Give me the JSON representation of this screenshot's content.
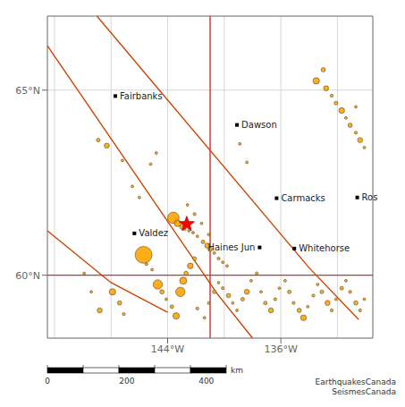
{
  "chart_data": {
    "type": "scatter",
    "xlim": [
      -152.5,
      -129.5
    ],
    "ylim": [
      58.3,
      67.0
    ],
    "xticks": [
      {
        "value": -144,
        "label": "144°W"
      },
      {
        "value": -136,
        "label": "136°W"
      }
    ],
    "yticks": [
      {
        "value": 60,
        "label": "60°N"
      },
      {
        "value": 65,
        "label": "65°N"
      }
    ],
    "grid": true,
    "grid_lines": {
      "x": [
        -152,
        -148,
        -144,
        -140,
        -136,
        -132
      ],
      "y": [
        60,
        65
      ]
    },
    "color": "#ffa500",
    "x": [
      -148.9,
      -148.3,
      -147.2,
      -146.5,
      -146.0,
      -145.2,
      -144.8,
      -143.6,
      -143.3,
      -143.0,
      -142.8,
      -142.5,
      -142.2,
      -141.9,
      -141.5,
      -141.2,
      -141.0,
      -140.7,
      -140.4,
      -140.1,
      -139.8,
      -142.6,
      -142.1,
      -141.6,
      -141.1,
      -145.7,
      -145.5,
      -145.1,
      -144.7,
      -144.4,
      -144.1,
      -143.7,
      -143.4,
      -143.1,
      -142.9,
      -142.7,
      -142.4,
      -142.1,
      -141.9,
      -141.4,
      -141.1,
      -140.7,
      -140.4,
      -140.1,
      -139.7,
      -139.4,
      -139.1,
      -138.7,
      -138.4,
      -138.1,
      -137.7,
      -137.4,
      -137.1,
      -136.7,
      -136.4,
      -136.1,
      -135.7,
      -135.4,
      -135.1,
      -134.7,
      -134.4,
      -134.1,
      -133.7,
      -133.4,
      -133.1,
      -132.7,
      -132.4,
      -132.1,
      -131.7,
      -131.4,
      -131.1,
      -130.7,
      -130.4,
      -130.1,
      -147.9,
      -147.4,
      -147.1,
      -148.8,
      -149.4,
      -149.9,
      -133.0,
      -133.5,
      -132.8,
      -132.4,
      -132.1,
      -131.7,
      -131.4,
      -131.1,
      -130.7,
      -130.4,
      -130.1,
      -130.7,
      -138.4,
      -138.9
    ],
    "values": [
      63.65,
      63.5,
      63.1,
      62.4,
      62.1,
      63.0,
      63.3,
      61.55,
      61.4,
      61.3,
      61.25,
      61.2,
      61.15,
      61.05,
      60.9,
      60.8,
      60.7,
      60.6,
      60.45,
      60.35,
      60.25,
      61.9,
      61.65,
      61.4,
      61.1,
      60.55,
      60.3,
      60.15,
      59.75,
      59.55,
      59.35,
      59.15,
      58.9,
      59.55,
      59.85,
      60.05,
      60.25,
      60.45,
      59.1,
      58.85,
      59.25,
      59.55,
      59.8,
      59.65,
      59.45,
      59.25,
      59.05,
      59.35,
      59.55,
      59.85,
      60.05,
      59.55,
      59.25,
      59.05,
      59.35,
      59.65,
      59.85,
      59.55,
      59.25,
      59.05,
      58.85,
      59.15,
      59.45,
      59.75,
      59.55,
      59.25,
      59.05,
      59.35,
      59.65,
      59.85,
      59.55,
      59.25,
      59.05,
      59.35,
      59.55,
      59.25,
      58.95,
      59.05,
      59.55,
      60.05,
      65.55,
      65.25,
      65.05,
      64.85,
      64.65,
      64.45,
      64.25,
      64.05,
      63.85,
      63.65,
      63.45,
      64.55,
      63.05,
      63.55
    ],
    "size": [
      5.4,
      5.6,
      5.1,
      5.2,
      5.0,
      5.2,
      5.0,
      6.5,
      5.8,
      5.5,
      5.3,
      5.2,
      5.1,
      5.0,
      5.4,
      5.6,
      5.5,
      5.2,
      5.3,
      5.1,
      5.0,
      5.1,
      5.3,
      5.0,
      5.2,
      7.2,
      5.3,
      5.1,
      6.2,
      5.5,
      5.2,
      5.4,
      5.8,
      6.2,
      5.9,
      5.5,
      5.7,
      5.4,
      5.3,
      5.2,
      5.1,
      5.4,
      5.2,
      5.3,
      5.5,
      5.0,
      5.2,
      5.4,
      5.6,
      5.1,
      5.3,
      5.2,
      5.4,
      5.6,
      5.3,
      5.1,
      5.2,
      5.4,
      5.3,
      5.5,
      5.7,
      5.2,
      5.3,
      5.1,
      5.4,
      5.6,
      5.3,
      5.2,
      5.4,
      5.1,
      5.3,
      5.5,
      5.3,
      5.2,
      5.8,
      5.5,
      5.3,
      5.6,
      5.2,
      5.1,
      5.5,
      5.8,
      5.6,
      5.3,
      5.4,
      5.7,
      5.2,
      5.5,
      5.3,
      5.6,
      5.1,
      5.0,
      5.0,
      5.1
    ],
    "star": {
      "x": -142.65,
      "y": 61.38,
      "color": "#ff0000"
    },
    "lines": [
      {
        "color": "#cc4400",
        "points": [
          [
            -152.5,
            66.2
          ],
          [
            -140.5,
            59.5
          ],
          [
            -138.0,
            58.3
          ]
        ]
      },
      {
        "color": "#cc4400",
        "points": [
          [
            -149.0,
            67.0
          ],
          [
            -134.0,
            60.2
          ],
          [
            -130.5,
            58.8
          ]
        ]
      },
      {
        "color": "#cc4400",
        "points": [
          [
            -152.5,
            61.2
          ],
          [
            -148.0,
            59.8
          ],
          [
            -144.0,
            59.0
          ]
        ]
      },
      {
        "color": "#cc3333",
        "points": [
          [
            -141.0,
            58.3
          ],
          [
            -141.0,
            67.0
          ]
        ]
      },
      {
        "color": "#cc3333",
        "points": [
          [
            -152.5,
            60.0
          ],
          [
            -129.5,
            60.0
          ]
        ]
      }
    ],
    "annotations": [
      {
        "text": "Fairbanks",
        "x": -147.7,
        "y": 64.84
      },
      {
        "text": "Dawson",
        "x": -139.1,
        "y": 64.06
      },
      {
        "text": "Carmacks",
        "x": -136.3,
        "y": 62.08
      },
      {
        "text": "Ros",
        "x": -130.6,
        "y": 62.1
      },
      {
        "text": "Valdez",
        "x": -146.35,
        "y": 61.13
      },
      {
        "text": "Haines Jun",
        "x": -137.5,
        "y": 60.75
      },
      {
        "text": "Whitehorse",
        "x": -135.05,
        "y": 60.72
      }
    ],
    "scale_bar": {
      "lim": [
        0,
        450
      ],
      "divisions": [
        0,
        90,
        180,
        270,
        360,
        450
      ],
      "ticks": [
        0,
        200,
        400
      ],
      "unit": "km"
    },
    "credits": "EarthquakesCanada\nSeismesCanada"
  }
}
